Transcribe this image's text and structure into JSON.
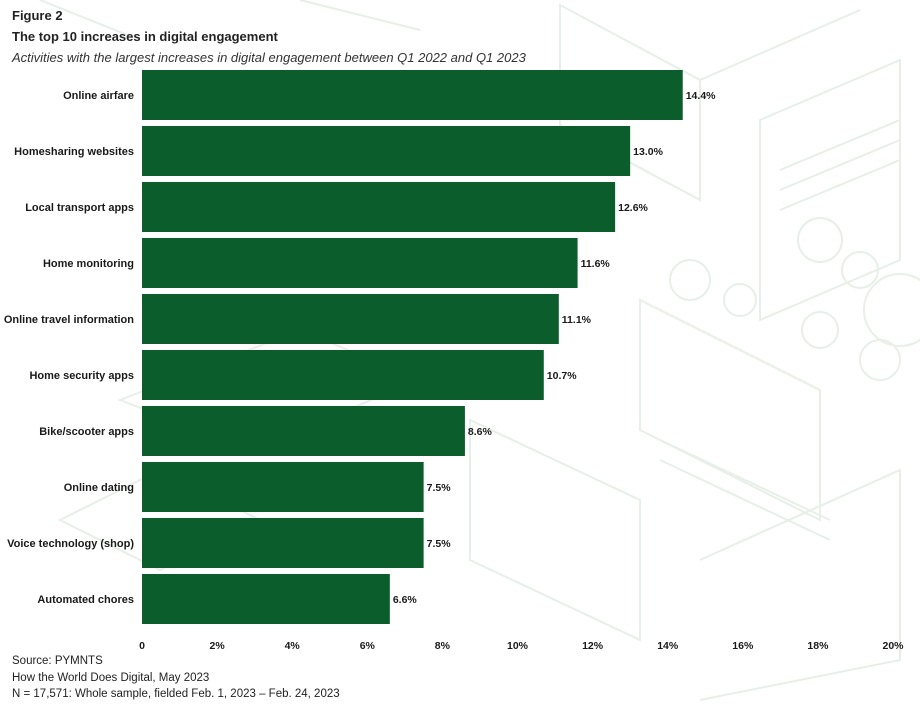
{
  "figure_label": "Figure 2",
  "title": "The top 10 increases in digital engagement",
  "subtitle": "Activities with the largest increases in digital engagement between Q1 2022 and Q1 2023",
  "colors": {
    "bar": "#0b5d2b",
    "background_lines": "#e7efe8"
  },
  "chart_data": {
    "type": "bar",
    "orientation": "horizontal",
    "categories": [
      "Online airfare",
      "Homesharing websites",
      "Local transport apps",
      "Home monitoring",
      "Online travel information",
      "Home security apps",
      "Bike/scooter apps",
      "Online dating",
      "Voice technology (shop)",
      "Automated chores"
    ],
    "values": [
      14.4,
      13.0,
      12.6,
      11.6,
      11.1,
      10.7,
      8.6,
      7.5,
      7.5,
      6.6
    ],
    "value_labels": [
      "14.4%",
      "13.0%",
      "12.6%",
      "11.6%",
      "11.1%",
      "10.7%",
      "8.6%",
      "7.5%",
      "7.5%",
      "6.6%"
    ],
    "xlim": [
      0,
      20
    ],
    "xticks": [
      0,
      2,
      4,
      6,
      8,
      10,
      12,
      14,
      16,
      18,
      20
    ],
    "xtick_labels": [
      "0",
      "2%",
      "4%",
      "6%",
      "8%",
      "10%",
      "12%",
      "14%",
      "16%",
      "18%",
      "20%"
    ],
    "xlabel": "",
    "ylabel": "",
    "grid": false,
    "legend": "none"
  },
  "footer": {
    "source": "Source: PYMNTS",
    "report": "How the World Does Digital, May 2023",
    "sample": "N = 17,571: Whole sample, fielded Feb. 1, 2023 – Feb. 24, 2023"
  }
}
